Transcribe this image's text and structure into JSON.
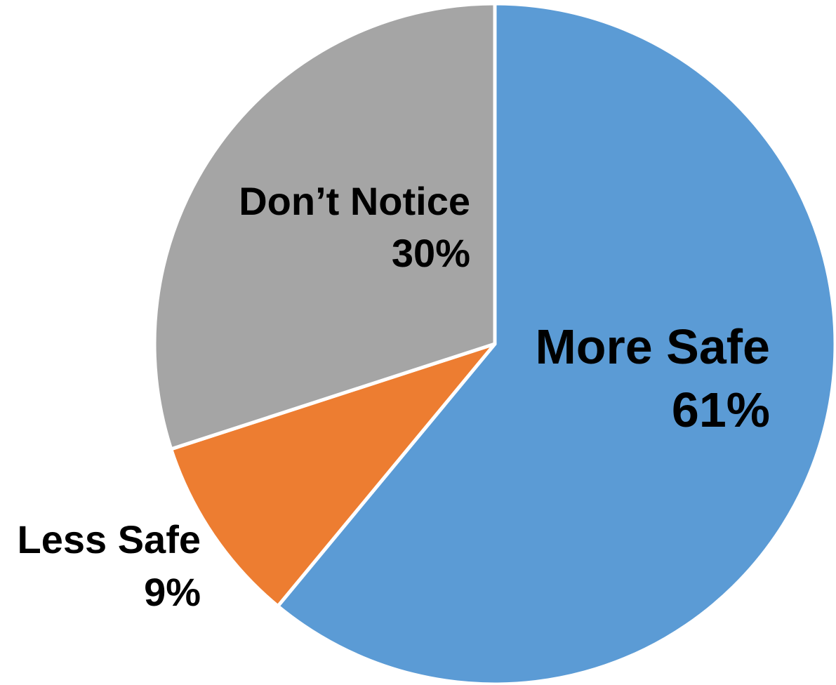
{
  "chart_data": {
    "type": "pie",
    "title": "",
    "slices": [
      {
        "label": "More Safe",
        "value": 61,
        "value_label": "61%",
        "color": "#5b9bd5"
      },
      {
        "label": "Less Safe",
        "value": 9,
        "value_label": "9%",
        "color": "#ed7d31"
      },
      {
        "label": "Don’t Notice",
        "value": 30,
        "value_label": "30%",
        "color": "#a5a5a5"
      }
    ],
    "start_angle": "12 o'clock",
    "direction": "clockwise",
    "legend": "none"
  }
}
